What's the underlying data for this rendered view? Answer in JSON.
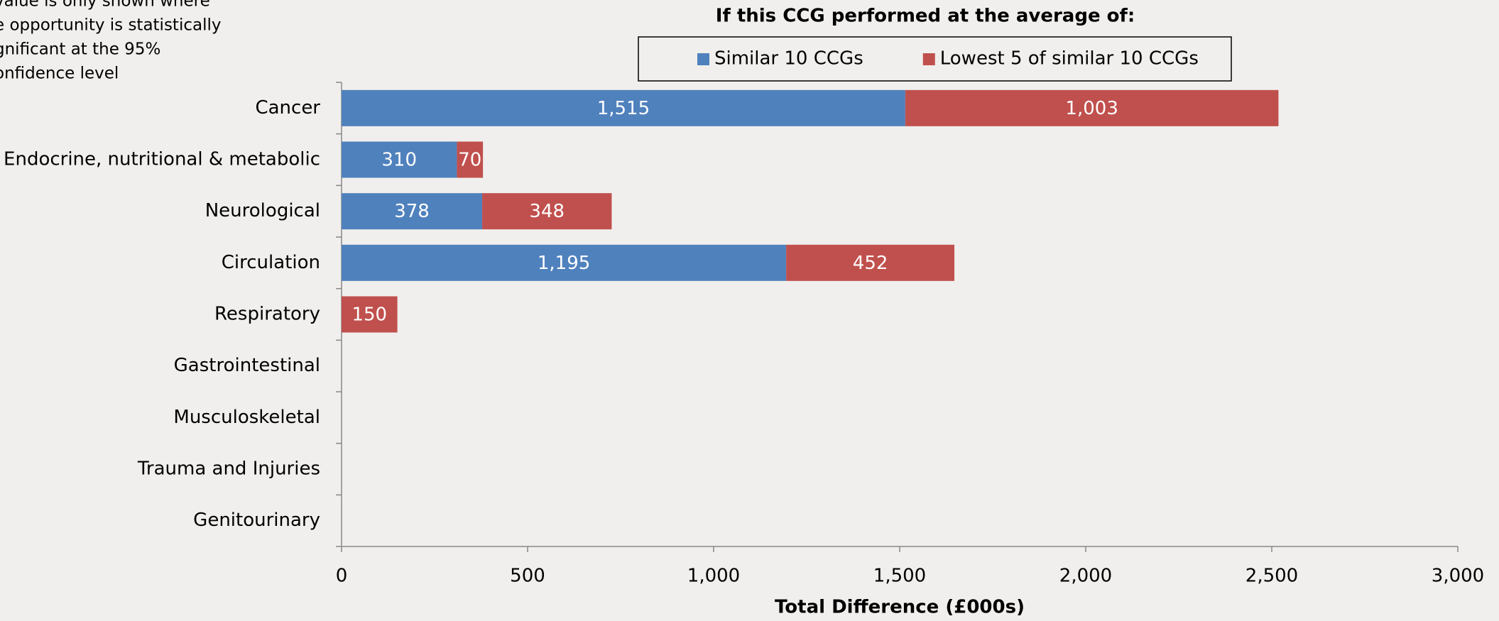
{
  "chart_data": {
    "type": "bar",
    "orientation": "horizontal",
    "stacked": true,
    "note": [
      "value is only shown where",
      "e opportunity is statistically",
      "gnificant at the 95%",
      "onfidence level"
    ],
    "title": "If this CCG performed at the average of:",
    "x_label": "Total Difference (£000s)",
    "categories": [
      "Cancer",
      "Endocrine, nutritional & metabolic",
      "Neurological",
      "Circulation",
      "Respiratory",
      "Gastrointestinal",
      "Musculoskeletal",
      "Trauma and Injuries",
      "Genitourinary"
    ],
    "series": [
      {
        "name": "Similar 10 CCGs",
        "color": "#4f81bd",
        "values": [
          1515,
          310,
          378,
          1195,
          null,
          null,
          null,
          null,
          null
        ],
        "value_labels": [
          "1,515",
          "310",
          "378",
          "1,195",
          null,
          null,
          null,
          null,
          null
        ]
      },
      {
        "name": "Lowest 5 of similar 10 CCGs",
        "color": "#c0504d",
        "values": [
          1003,
          70,
          348,
          452,
          150,
          null,
          null,
          null,
          null
        ],
        "value_labels": [
          "1,003",
          "70",
          "348",
          "452",
          "150",
          null,
          null,
          null,
          null
        ]
      }
    ],
    "xlim": [
      0,
      3000
    ],
    "xticks": [
      0,
      500,
      {
        "value": 1000,
        "label": "1,000"
      },
      {
        "value": 1500,
        "label": "1,500"
      },
      {
        "value": 2000,
        "label": "2,000"
      },
      {
        "value": 2500,
        "label": "2,500"
      },
      {
        "value": 3000,
        "label": "3,000"
      }
    ]
  }
}
